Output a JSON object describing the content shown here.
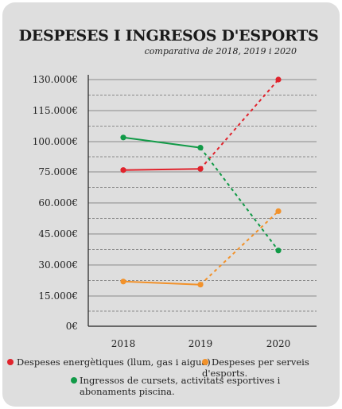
{
  "chart_data": {
    "type": "line",
    "title": "DESPESES I INGRESOS D'ESPORTS",
    "subtitle": "comparativa de 2018, 2019 i 2020",
    "categories": [
      "2018",
      "2019",
      "2020"
    ],
    "ylim": [
      0,
      130000
    ],
    "y_ticks": [
      0,
      15000,
      30000,
      45000,
      60000,
      75000,
      100000,
      115000,
      130000
    ],
    "y_tick_labels": [
      "0€",
      "15.000€",
      "30.000€",
      "45.000€",
      "60.000€",
      "75.000€",
      "100.000€",
      "115.000€",
      "130.000€"
    ],
    "grid": true,
    "legend_position": "bottom",
    "series": [
      {
        "name": "Despeses energètiques (llum, gas i aigua)",
        "color": "#e0232c",
        "values": [
          76500,
          77500,
          130000
        ]
      },
      {
        "name": "Despeses per serveis d'esports.",
        "color": "#f2922b",
        "values": [
          22000,
          20500,
          56000
        ]
      },
      {
        "name": "Ingressos de cursets, activitats esportives i abonaments piscina.",
        "color": "#119a47",
        "values": [
          102000,
          95000,
          37000
        ]
      }
    ],
    "line_style": "solid from 2018 to 2019, dashed from 2019 to 2020"
  }
}
